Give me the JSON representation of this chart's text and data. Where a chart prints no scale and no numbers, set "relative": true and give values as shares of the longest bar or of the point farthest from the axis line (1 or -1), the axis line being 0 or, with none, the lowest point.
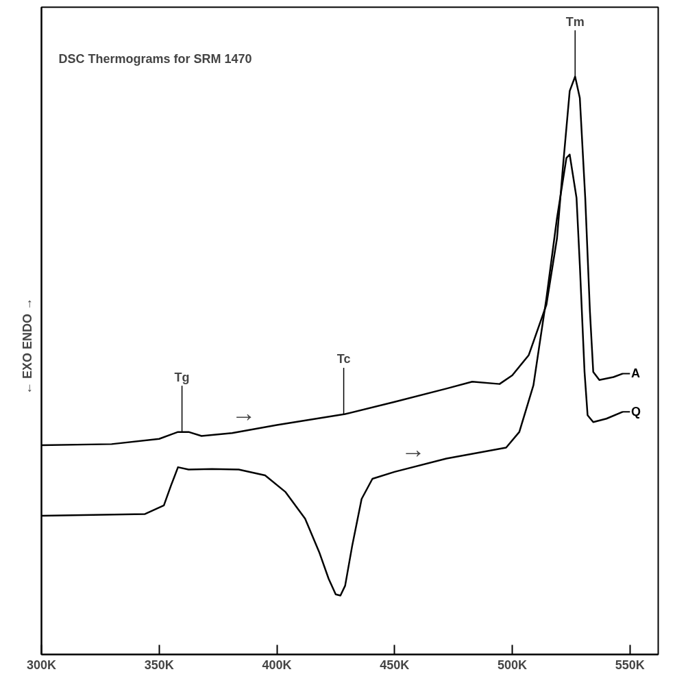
{
  "chart_data": {
    "type": "line",
    "relative": true,
    "title": "DSC Thermograms for SRM 1470",
    "ylabel": "← EXO          ENDO →",
    "xlim": [
      300,
      562
    ],
    "xticks": [
      {
        "value": 300,
        "label": "300K"
      },
      {
        "value": 350,
        "label": "350K"
      },
      {
        "value": 400,
        "label": "400K"
      },
      {
        "value": 450,
        "label": "450K"
      },
      {
        "value": 500,
        "label": "500K"
      },
      {
        "value": 550,
        "label": "550K"
      }
    ],
    "grid": false,
    "legend": "right",
    "marker": "none",
    "line_style": "solid",
    "series": [
      {
        "name": "A",
        "color": "#000000",
        "x": [
          300,
          329.8,
          350,
          358,
          362.5,
          368,
          381,
          400,
          429,
          450,
          472,
          483,
          494.6,
          500,
          507,
          514.5,
          519,
          521.6,
          524.4,
          526.7,
          528.7,
          531,
          533,
          534.4,
          537,
          543,
          547
        ],
        "values": [
          0.362,
          0.364,
          0.373,
          0.385,
          0.385,
          0.378,
          0.383,
          0.397,
          0.416,
          0.437,
          0.46,
          0.472,
          0.468,
          0.483,
          0.518,
          0.605,
          0.72,
          0.847,
          0.975,
          1.0,
          0.963,
          0.79,
          0.593,
          0.489,
          0.475,
          0.48,
          0.486
        ]
      },
      {
        "name": "Q",
        "color": "#000000",
        "x": [
          300,
          344,
          352,
          355,
          358,
          362.5,
          372.4,
          383.8,
          395,
          403.7,
          412,
          418,
          422,
          425,
          427,
          429,
          432,
          436,
          440.6,
          450,
          472,
          497.4,
          503,
          509,
          514.5,
          519,
          523,
          524.4,
          527.3,
          528.7,
          530.7,
          532,
          534.4,
          540,
          547
        ],
        "values": [
          0.24,
          0.243,
          0.258,
          0.292,
          0.324,
          0.32,
          0.321,
          0.32,
          0.31,
          0.281,
          0.235,
          0.177,
          0.131,
          0.104,
          0.102,
          0.119,
          0.188,
          0.269,
          0.304,
          0.316,
          0.339,
          0.358,
          0.385,
          0.466,
          0.616,
          0.755,
          0.859,
          0.865,
          0.79,
          0.674,
          0.489,
          0.414,
          0.402,
          0.408,
          0.42
        ]
      }
    ],
    "annotations": [
      {
        "text": "Tg",
        "x": 359.7,
        "y": 0.385
      },
      {
        "text": "Tc",
        "x": 428.4,
        "y": 0.416
      },
      {
        "text": "Tm",
        "x": 526.7,
        "y": 1.0
      },
      {
        "text": "→",
        "x": 386,
        "y": 0.387
      },
      {
        "text": "→",
        "x": 458,
        "y": 0.324
      }
    ]
  }
}
